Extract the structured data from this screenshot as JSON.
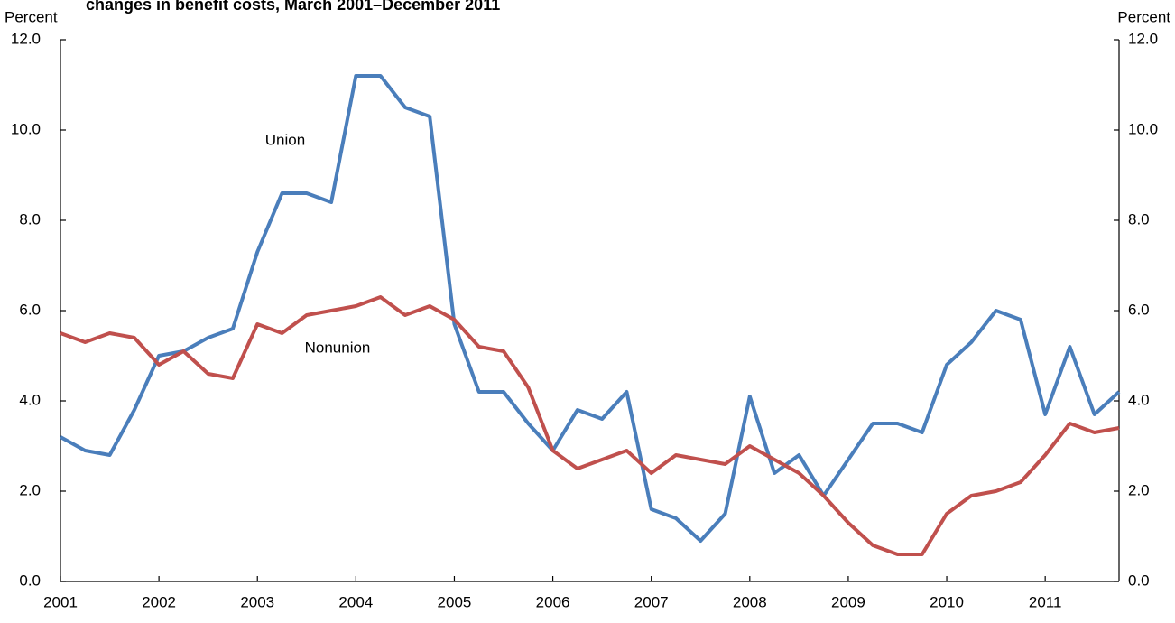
{
  "chart_data": {
    "type": "line",
    "title": "changes in benefit costs, March 2001–December 2011",
    "ylabel": "Percent",
    "y2label": "Percent",
    "x": [
      2001,
      2001.25,
      2001.5,
      2001.75,
      2002,
      2002.25,
      2002.5,
      2002.75,
      2003,
      2003.25,
      2003.5,
      2003.75,
      2004,
      2004.25,
      2004.5,
      2004.75,
      2005,
      2005.25,
      2005.5,
      2005.75,
      2006,
      2006.25,
      2006.5,
      2006.75,
      2007,
      2007.25,
      2007.5,
      2007.75,
      2008,
      2008.25,
      2008.5,
      2008.75,
      2009,
      2009.25,
      2009.5,
      2009.75,
      2010,
      2010.25,
      2010.5,
      2010.75,
      2011,
      2011.25,
      2011.5,
      2011.75
    ],
    "xlim": [
      2001,
      2011.75
    ],
    "xticks": [
      2001,
      2002,
      2003,
      2004,
      2005,
      2006,
      2007,
      2008,
      2009,
      2010,
      2011
    ],
    "ylim": [
      0,
      12
    ],
    "yticks": [
      {
        "value": 0,
        "label": "0.0"
      },
      {
        "value": 2,
        "label": "2.0"
      },
      {
        "value": 4,
        "label": "4.0"
      },
      {
        "value": 6,
        "label": "6.0"
      },
      {
        "value": 8,
        "label": "8.0"
      },
      {
        "value": 10,
        "label": "10.0"
      },
      {
        "value": 12,
        "label": "12.0"
      }
    ],
    "y2lim": [
      0,
      12
    ],
    "y2ticks": [
      {
        "value": 0,
        "label": "0.0"
      },
      {
        "value": 2,
        "label": "2.0"
      },
      {
        "value": 4,
        "label": "4.0"
      },
      {
        "value": 6,
        "label": "6.0"
      },
      {
        "value": 8,
        "label": "8.0"
      },
      {
        "value": 10,
        "label": "10.0"
      },
      {
        "value": 12,
        "label": "12.0"
      }
    ],
    "series": [
      {
        "name": "Union",
        "color": "#4a7ebb",
        "values": [
          3.2,
          2.9,
          2.8,
          3.8,
          5.0,
          5.1,
          5.4,
          5.6,
          7.3,
          8.6,
          8.6,
          8.4,
          11.2,
          11.2,
          10.5,
          10.3,
          5.7,
          4.2,
          4.2,
          3.5,
          2.9,
          3.8,
          3.6,
          4.2,
          1.6,
          1.4,
          0.9,
          1.5,
          4.1,
          2.4,
          2.8,
          1.9,
          2.7,
          3.5,
          3.5,
          3.3,
          4.8,
          5.3,
          6.0,
          5.8,
          3.7,
          5.2,
          3.7,
          4.2
        ]
      },
      {
        "name": "Nonunion",
        "color": "#c0504d",
        "values": [
          5.5,
          5.3,
          5.5,
          5.4,
          4.8,
          5.1,
          4.6,
          4.5,
          5.7,
          5.5,
          5.9,
          6.0,
          6.1,
          6.3,
          5.9,
          6.1,
          5.8,
          5.2,
          5.1,
          4.3,
          2.9,
          2.5,
          2.7,
          2.9,
          2.4,
          2.8,
          2.7,
          2.6,
          3.0,
          2.7,
          2.4,
          1.9,
          1.3,
          0.8,
          0.6,
          0.6,
          1.5,
          1.9,
          2.0,
          2.2,
          2.8,
          3.5,
          3.3,
          3.4
        ]
      }
    ]
  }
}
